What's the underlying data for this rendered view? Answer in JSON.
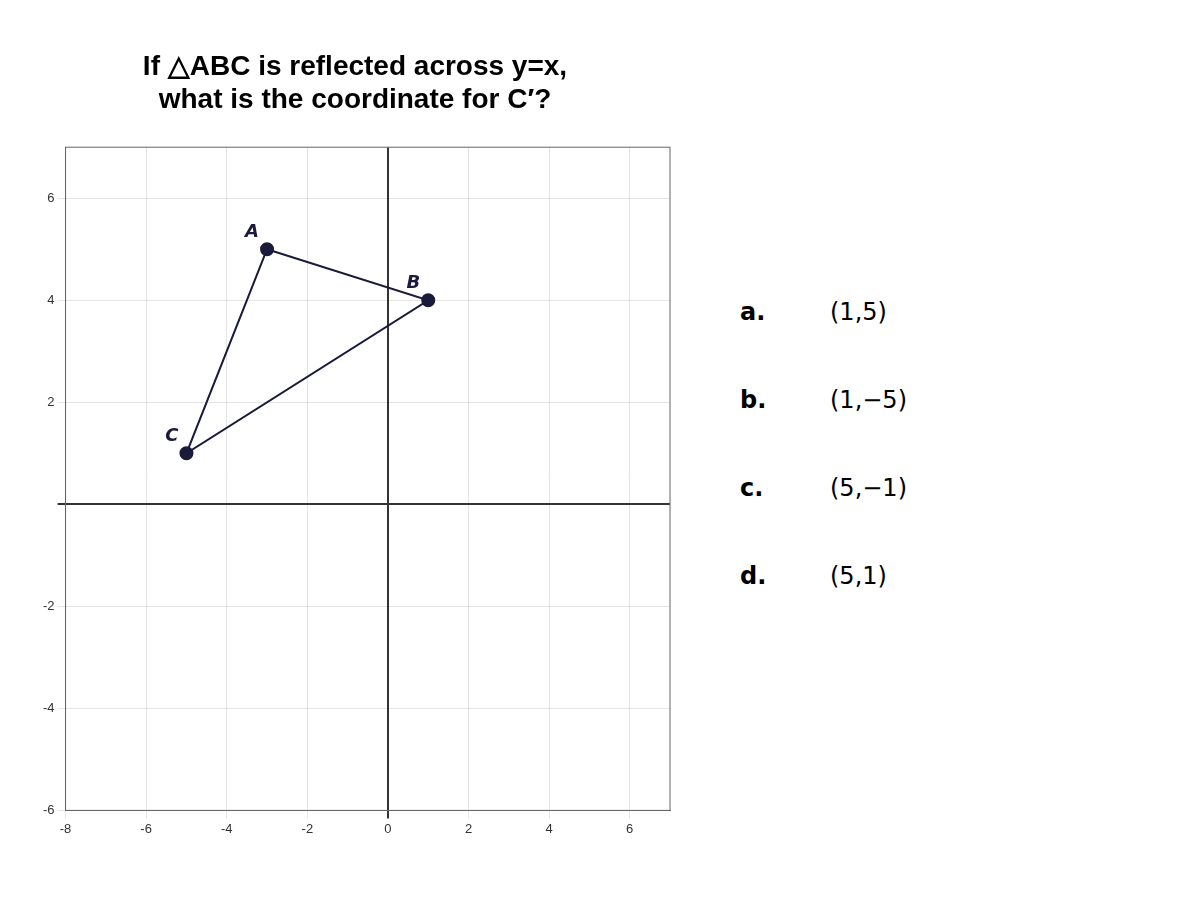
{
  "chart_data": {
    "type": "polygon",
    "title": [
      "If △ABC is reflected across y=x,",
      "what is the coordinate for C′?"
    ],
    "x": [
      -3,
      1,
      -5
    ],
    "y": [
      5,
      4,
      1
    ],
    "point_labels": [
      "A",
      "B",
      "C"
    ],
    "color": "#1a1a3a",
    "marker": "circle",
    "xlim": [
      -8,
      7
    ],
    "xticks": [
      -8,
      -6,
      -4,
      -2,
      0,
      2,
      4,
      6
    ],
    "ylim": [
      -6,
      7
    ],
    "yticks": [
      -6,
      -4,
      -2,
      {
        "value": 0,
        "label": ""
      },
      2,
      4,
      6
    ],
    "grid": true,
    "annotations": [
      {
        "label": "a.",
        "text": "(1,5)"
      },
      {
        "label": "b.",
        "text": "(1,−5)"
      },
      {
        "label": "c.",
        "text": "(5,−1)"
      },
      {
        "label": "d.",
        "text": "(5,1)"
      }
    ]
  }
}
